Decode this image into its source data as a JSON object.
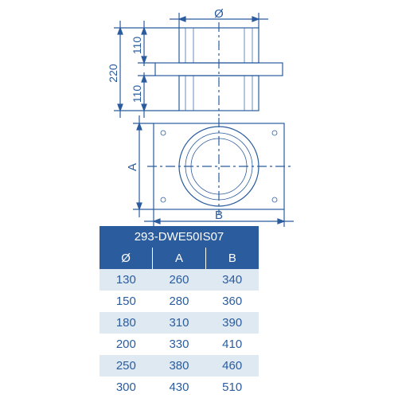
{
  "diagram": {
    "stroke": "#2a5c9e",
    "stroke_width": 1.2,
    "dims": {
      "diameter_label": "Ø",
      "h_total": "220",
      "h_upper": "110",
      "h_lower": "110",
      "width_label": "B",
      "depth_label": "A"
    }
  },
  "table": {
    "title": "293-DWE50IS07",
    "header_bg": "#2a5c9e",
    "header_fg": "#ffffff",
    "alt_bg": "#dfe9f2",
    "text_color": "#2a5c9e",
    "columns": [
      "Ø",
      "A",
      "B"
    ],
    "rows": [
      [
        "130",
        "260",
        "340"
      ],
      [
        "150",
        "280",
        "360"
      ],
      [
        "180",
        "310",
        "390"
      ],
      [
        "200",
        "330",
        "410"
      ],
      [
        "250",
        "380",
        "460"
      ],
      [
        "300",
        "430",
        "510"
      ]
    ]
  }
}
